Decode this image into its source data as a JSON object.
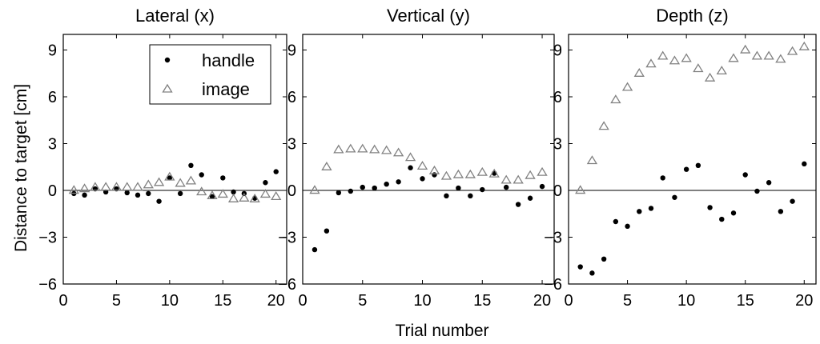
{
  "figure": {
    "ylabel": "Distance to target [cm]",
    "xlabel": "Trial number",
    "legend": {
      "handle": "handle",
      "image": "image"
    },
    "zero_line": "on",
    "legend_location": "top-right of first panel"
  },
  "chart_data": [
    {
      "type": "scatter",
      "title": "Lateral (x)",
      "xlabel": "Trial number",
      "ylabel": "Distance to target [cm]",
      "xlim": [
        0,
        21
      ],
      "ylim": [
        -6,
        10
      ],
      "xticks": [
        0,
        5,
        10,
        15,
        20
      ],
      "yticks": [
        -6,
        -3,
        0,
        3,
        6,
        9
      ],
      "x": [
        1,
        2,
        3,
        4,
        5,
        6,
        7,
        8,
        9,
        10,
        11,
        12,
        13,
        14,
        15,
        16,
        17,
        18,
        19,
        20
      ],
      "series": [
        {
          "name": "handle",
          "marker": "dot",
          "color": "#000000",
          "values": [
            -0.2,
            -0.3,
            0.1,
            -0.1,
            0.1,
            -0.15,
            -0.3,
            -0.2,
            -0.7,
            0.8,
            -0.2,
            1.6,
            1.0,
            -0.4,
            0.8,
            -0.1,
            -0.2,
            -0.5,
            0.5,
            1.2
          ]
        },
        {
          "name": "image",
          "marker": "triangle",
          "color": "#808080",
          "values": [
            0.0,
            0.1,
            0.2,
            0.2,
            0.2,
            0.2,
            0.2,
            0.35,
            0.5,
            0.85,
            0.45,
            0.6,
            -0.1,
            -0.35,
            -0.25,
            -0.55,
            -0.5,
            -0.55,
            -0.25,
            -0.4
          ]
        }
      ]
    },
    {
      "type": "scatter",
      "title": "Vertical (y)",
      "xlim": [
        0,
        21
      ],
      "ylim": [
        -6,
        10
      ],
      "xticks": [
        0,
        5,
        10,
        15,
        20
      ],
      "yticks": [
        -6,
        -3,
        0,
        3,
        6,
        9
      ],
      "x": [
        1,
        2,
        3,
        4,
        5,
        6,
        7,
        8,
        9,
        10,
        11,
        12,
        13,
        14,
        15,
        16,
        17,
        18,
        19,
        20
      ],
      "series": [
        {
          "name": "handle",
          "marker": "dot",
          "color": "#000000",
          "values": [
            -3.8,
            -2.6,
            -0.15,
            -0.05,
            0.2,
            0.15,
            0.4,
            0.55,
            1.45,
            0.75,
            1.0,
            -0.35,
            0.15,
            -0.35,
            0.05,
            1.1,
            0.2,
            -0.9,
            -0.5,
            0.25
          ]
        },
        {
          "name": "image",
          "marker": "triangle",
          "color": "#808080",
          "values": [
            0.0,
            1.5,
            2.6,
            2.65,
            2.65,
            2.6,
            2.55,
            2.4,
            2.1,
            1.55,
            1.25,
            0.9,
            1.0,
            1.0,
            1.15,
            1.05,
            0.65,
            0.65,
            0.95,
            1.15
          ]
        }
      ]
    },
    {
      "type": "scatter",
      "title": "Depth (z)",
      "xlim": [
        0,
        21
      ],
      "ylim": [
        -6,
        10
      ],
      "xticks": [
        0,
        5,
        10,
        15,
        20
      ],
      "yticks": [
        -6,
        -3,
        0,
        3,
        6,
        9
      ],
      "x": [
        1,
        2,
        3,
        4,
        5,
        6,
        7,
        8,
        9,
        10,
        11,
        12,
        13,
        14,
        15,
        16,
        17,
        18,
        19,
        20
      ],
      "series": [
        {
          "name": "handle",
          "marker": "dot",
          "color": "#000000",
          "values": [
            -4.9,
            -5.3,
            -4.4,
            -2.0,
            -2.3,
            -1.35,
            -1.15,
            0.8,
            -0.45,
            1.35,
            1.6,
            -1.1,
            -1.85,
            -1.45,
            1.0,
            -0.05,
            0.5,
            -1.35,
            -0.7,
            1.7
          ]
        },
        {
          "name": "image",
          "marker": "triangle",
          "color": "#808080",
          "values": [
            0.0,
            1.9,
            4.1,
            5.8,
            6.6,
            7.5,
            8.1,
            8.6,
            8.3,
            8.45,
            7.8,
            7.2,
            7.65,
            8.45,
            9.0,
            8.6,
            8.6,
            8.4,
            8.9,
            9.2
          ]
        }
      ]
    }
  ]
}
